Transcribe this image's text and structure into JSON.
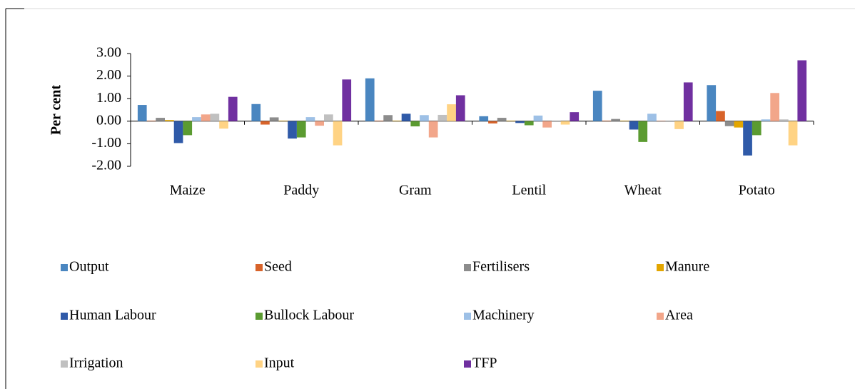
{
  "chart_data": {
    "type": "bar",
    "y_label": "Per cent",
    "categories": [
      "Maize",
      "Paddy",
      "Gram",
      "Lentil",
      "Wheat",
      "Potato"
    ],
    "series": [
      {
        "name": "Output",
        "color": "#4a86c0",
        "values": [
          0.72,
          0.76,
          1.9,
          0.22,
          1.35,
          1.6
        ]
      },
      {
        "name": "Seed",
        "color": "#d8632a",
        "values": [
          0.02,
          -0.15,
          0.02,
          -0.1,
          0.02,
          0.45
        ]
      },
      {
        "name": "Fertilisers",
        "color": "#8c8c8c",
        "values": [
          0.15,
          0.17,
          0.27,
          0.15,
          0.1,
          -0.22
        ]
      },
      {
        "name": "Manure",
        "color": "#e3a600",
        "values": [
          0.05,
          0.02,
          0.02,
          0.02,
          0.02,
          -0.28
        ]
      },
      {
        "name": "Human Labour",
        "color": "#2f5aa8",
        "values": [
          -0.97,
          -0.77,
          0.33,
          -0.08,
          -0.37,
          -1.52
        ]
      },
      {
        "name": "Bullock Labour",
        "color": "#5b9b31",
        "values": [
          -0.62,
          -0.72,
          -0.23,
          -0.18,
          -0.92,
          -0.62
        ]
      },
      {
        "name": "Machinery",
        "color": "#9dc0e6",
        "values": [
          0.18,
          0.18,
          0.27,
          0.25,
          0.33,
          0.08
        ]
      },
      {
        "name": "Area",
        "color": "#f2a68a",
        "values": [
          0.3,
          -0.2,
          -0.72,
          -0.28,
          0.02,
          1.25
        ]
      },
      {
        "name": "Irrigation",
        "color": "#c0c0c0",
        "values": [
          0.33,
          0.3,
          0.28,
          0.02,
          0.02,
          0.08
        ]
      },
      {
        "name": "Input",
        "color": "#ffd384",
        "values": [
          -0.33,
          -1.07,
          0.75,
          -0.15,
          -0.35,
          -1.07
        ]
      },
      {
        "name": "TFP",
        "color": "#7030a0",
        "values": [
          1.08,
          1.85,
          1.15,
          0.4,
          1.72,
          2.7
        ]
      }
    ],
    "ylim": [
      -2,
      3
    ],
    "yticks": [
      {
        "value": -2,
        "label": "-2.00"
      },
      {
        "value": -1,
        "label": "-1.00"
      },
      {
        "value": 0,
        "label": "0.00"
      },
      {
        "value": 1,
        "label": "1.00"
      },
      {
        "value": 2,
        "label": "2.00"
      },
      {
        "value": 3,
        "label": "3.00"
      }
    ],
    "grid": false,
    "legend": "bottom"
  }
}
